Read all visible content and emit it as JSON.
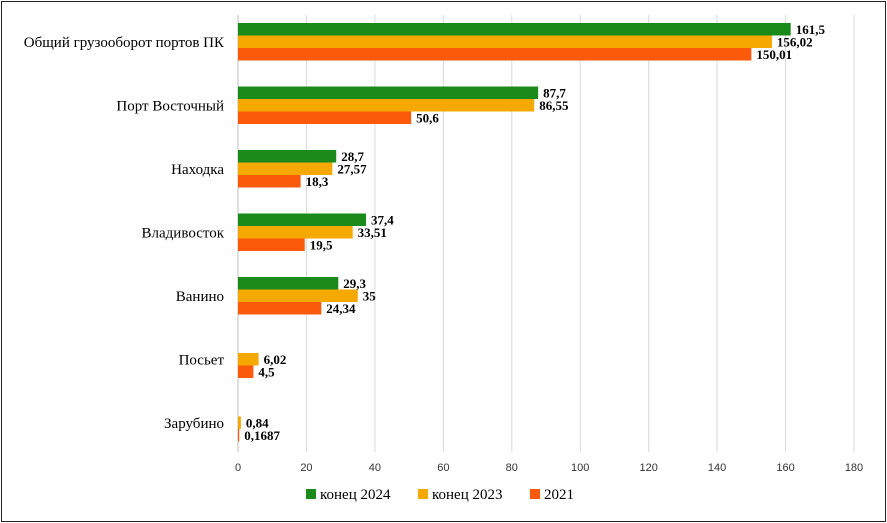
{
  "chart_data": {
    "type": "bar",
    "orientation": "horizontal",
    "title": "",
    "xlabel": "",
    "ylabel": "",
    "xlim": [
      0,
      180
    ],
    "x_ticks": [
      "0",
      "20",
      "40",
      "60",
      "80",
      "100",
      "120",
      "140",
      "160",
      "180"
    ],
    "grid": true,
    "legend_position": "bottom",
    "categories": [
      "Общий грузооборот портов ПК",
      "Порт Восточный",
      "Находка",
      "Владивосток",
      "Ванино",
      "Посьет",
      "Зарубино"
    ],
    "series": [
      {
        "name": "конец 2024",
        "color": "#1a8a1a",
        "values": [
          161.5,
          87.7,
          28.7,
          37.4,
          29.3,
          null,
          null
        ],
        "labels": [
          "161,5",
          "87,7",
          "28,7",
          "37,4",
          "29,3",
          "",
          ""
        ]
      },
      {
        "name": "конец 2023",
        "color": "#f5a800",
        "values": [
          156.02,
          86.55,
          27.57,
          33.51,
          35,
          6.02,
          0.84
        ],
        "labels": [
          "156,02",
          "86,55",
          "27,57",
          "33,51",
          "35",
          "6,02",
          "0,84"
        ]
      },
      {
        "name": "2021",
        "color": "#fa5a0a",
        "values": [
          150.01,
          50.6,
          18.3,
          19.5,
          24.34,
          4.5,
          0.1687
        ],
        "labels": [
          "150,01",
          "50,6",
          "18,3",
          "19,5",
          "24,34",
          "4,5",
          "0,1687"
        ]
      }
    ]
  }
}
